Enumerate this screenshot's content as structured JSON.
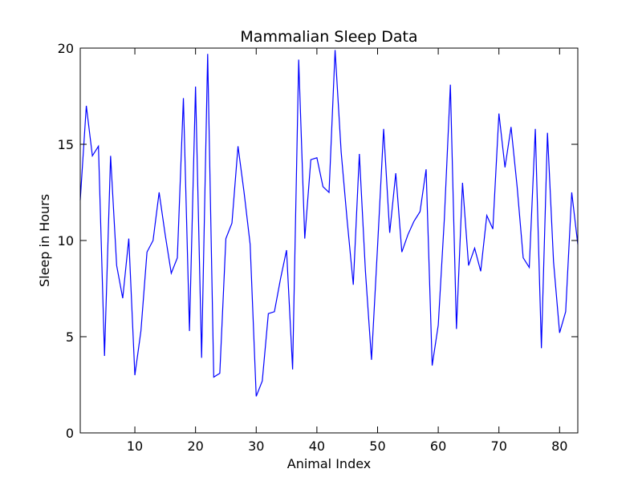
{
  "chart_data": {
    "type": "line",
    "title": "Mammalian Sleep Data",
    "xlabel": "Animal Index",
    "ylabel": "Sleep in Hours",
    "xlim": [
      1,
      83
    ],
    "ylim": [
      0,
      20
    ],
    "xticks": [
      10,
      20,
      30,
      40,
      50,
      60,
      70,
      80
    ],
    "yticks": [
      0,
      5,
      10,
      15,
      20
    ],
    "grid": false,
    "line_color": "#0000ff",
    "x": [
      1,
      2,
      3,
      4,
      5,
      6,
      7,
      8,
      9,
      10,
      11,
      12,
      13,
      14,
      15,
      16,
      17,
      18,
      19,
      20,
      21,
      22,
      23,
      24,
      25,
      26,
      27,
      28,
      29,
      30,
      31,
      32,
      33,
      34,
      35,
      36,
      37,
      38,
      39,
      40,
      41,
      42,
      43,
      44,
      45,
      46,
      47,
      48,
      49,
      50,
      51,
      52,
      53,
      54,
      55,
      56,
      57,
      58,
      59,
      60,
      61,
      62,
      63,
      64,
      65,
      66,
      67,
      68,
      69,
      70,
      71,
      72,
      73,
      74,
      75,
      76,
      77,
      78,
      79,
      80,
      81,
      82,
      83
    ],
    "values": [
      12.1,
      17.0,
      14.4,
      14.9,
      4.0,
      14.4,
      8.7,
      7.0,
      10.1,
      3.0,
      5.3,
      9.4,
      10.0,
      12.5,
      10.3,
      8.3,
      9.1,
      17.4,
      5.3,
      18.0,
      3.9,
      19.7,
      2.9,
      3.1,
      10.1,
      10.9,
      14.9,
      12.5,
      9.8,
      1.9,
      2.7,
      6.2,
      6.3,
      8.0,
      9.5,
      3.3,
      19.4,
      10.1,
      14.2,
      14.3,
      12.8,
      12.5,
      19.9,
      14.6,
      11.0,
      7.7,
      14.5,
      8.4,
      3.8,
      9.7,
      15.8,
      10.4,
      13.5,
      9.4,
      10.3,
      11.0,
      11.5,
      13.7,
      3.5,
      5.6,
      11.1,
      18.1,
      5.4,
      13.0,
      8.7,
      9.6,
      8.4,
      11.3,
      10.6,
      16.6,
      13.8,
      15.9,
      12.8,
      9.1,
      8.6,
      15.8,
      4.4,
      15.6,
      8.9,
      5.2,
      6.3,
      12.5,
      9.8
    ]
  }
}
